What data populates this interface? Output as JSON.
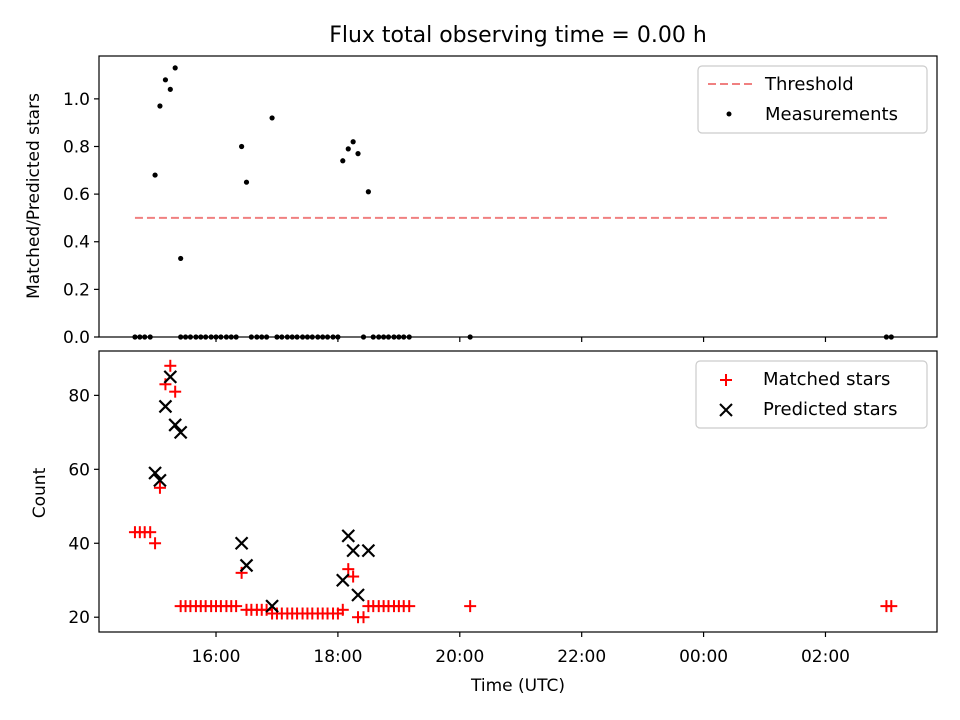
{
  "title": "Flux total observing time = 0.00 h",
  "x_axis": {
    "label": "Time (UTC)",
    "tick_labels": [
      "16:00",
      "18:00",
      "20:00",
      "22:00",
      "00:00",
      "02:00"
    ],
    "tick_hours": [
      16,
      18,
      20,
      22,
      24,
      26
    ],
    "range_hours": [
      14.08,
      27.83
    ]
  },
  "chart_data": [
    {
      "type": "scatter",
      "name": "ratio-panel",
      "ylabel": "Matched/Predicted stars",
      "ylim": [
        0,
        1.18
      ],
      "yticks": [
        0.0,
        0.2,
        0.4,
        0.6,
        0.8,
        1.0
      ],
      "legend": {
        "position": "top-right",
        "entries": [
          "Threshold",
          "Measurements"
        ]
      },
      "threshold": {
        "name": "Threshold",
        "y": 0.5,
        "x_start": 14.67,
        "x_end": 27.07,
        "color": "#f08080",
        "style": "dashed"
      },
      "series": [
        {
          "name": "Measurements",
          "color": "#000000",
          "marker": "dot",
          "x": [
            14.67,
            14.75,
            14.83,
            14.92,
            15.0,
            15.08,
            15.17,
            15.25,
            15.33,
            15.42,
            15.42,
            15.5,
            15.58,
            15.67,
            15.75,
            15.83,
            15.92,
            16.0,
            16.08,
            16.17,
            16.25,
            16.33,
            16.42,
            16.5,
            16.58,
            16.67,
            16.75,
            16.83,
            16.92,
            17.0,
            17.08,
            17.17,
            17.25,
            17.33,
            17.42,
            17.5,
            17.58,
            17.67,
            17.75,
            17.83,
            17.92,
            18.0,
            18.08,
            18.17,
            18.25,
            18.33,
            18.42,
            18.5,
            18.58,
            18.67,
            18.75,
            18.83,
            18.92,
            19.0,
            19.08,
            19.17,
            20.17,
            27.0,
            27.08
          ],
          "y": [
            0,
            0,
            0,
            0,
            0.68,
            0.97,
            1.08,
            1.04,
            1.13,
            0.33,
            0,
            0,
            0,
            0,
            0,
            0,
            0,
            0,
            0,
            0,
            0,
            0,
            0.8,
            0.65,
            0,
            0,
            0,
            0,
            0.92,
            0,
            0,
            0,
            0,
            0,
            0,
            0,
            0,
            0,
            0,
            0,
            0,
            0,
            0.74,
            0.79,
            0.82,
            0.77,
            0,
            0.61,
            0,
            0,
            0,
            0,
            0,
            0,
            0,
            0,
            0,
            0,
            0
          ]
        }
      ]
    },
    {
      "type": "scatter",
      "name": "count-panel",
      "ylabel": "Count",
      "xlabel": "Time (UTC)",
      "ylim": [
        16,
        92
      ],
      "yticks": [
        20,
        40,
        60,
        80
      ],
      "legend": {
        "position": "top-right",
        "entries": [
          "Matched stars",
          "Predicted stars"
        ]
      },
      "series": [
        {
          "name": "Matched stars",
          "color": "#ff0000",
          "marker": "plus",
          "x": [
            14.67,
            14.75,
            14.83,
            14.92,
            15.0,
            15.08,
            15.17,
            15.25,
            15.33,
            15.42,
            15.5,
            15.58,
            15.67,
            15.75,
            15.83,
            15.92,
            16.0,
            16.08,
            16.17,
            16.25,
            16.33,
            16.42,
            16.5,
            16.58,
            16.67,
            16.75,
            16.83,
            16.92,
            17.0,
            17.08,
            17.17,
            17.25,
            17.33,
            17.42,
            17.5,
            17.58,
            17.67,
            17.75,
            17.83,
            17.92,
            18.0,
            18.08,
            18.17,
            18.25,
            18.33,
            18.42,
            18.5,
            18.58,
            18.67,
            18.75,
            18.83,
            18.92,
            19.0,
            19.08,
            19.17,
            20.17,
            27.0,
            27.08
          ],
          "y": [
            43,
            43,
            43,
            43,
            40,
            55,
            83,
            88,
            81,
            23,
            23,
            23,
            23,
            23,
            23,
            23,
            23,
            23,
            23,
            23,
            23,
            32,
            22,
            22,
            22,
            22,
            22,
            21,
            21,
            21,
            21,
            21,
            21,
            21,
            21,
            21,
            21,
            21,
            21,
            21,
            21,
            22,
            33,
            31,
            20,
            20,
            23,
            23,
            23,
            23,
            23,
            23,
            23,
            23,
            23,
            23,
            23,
            23
          ]
        },
        {
          "name": "Predicted stars",
          "color": "#000000",
          "marker": "cross",
          "x": [
            15.0,
            15.08,
            15.17,
            15.25,
            15.33,
            15.42,
            16.42,
            16.5,
            16.92,
            18.08,
            18.17,
            18.25,
            18.33,
            18.5
          ],
          "y": [
            59,
            57,
            77,
            85,
            72,
            70,
            40,
            34,
            23,
            30,
            42,
            38,
            26,
            38
          ]
        }
      ]
    }
  ]
}
